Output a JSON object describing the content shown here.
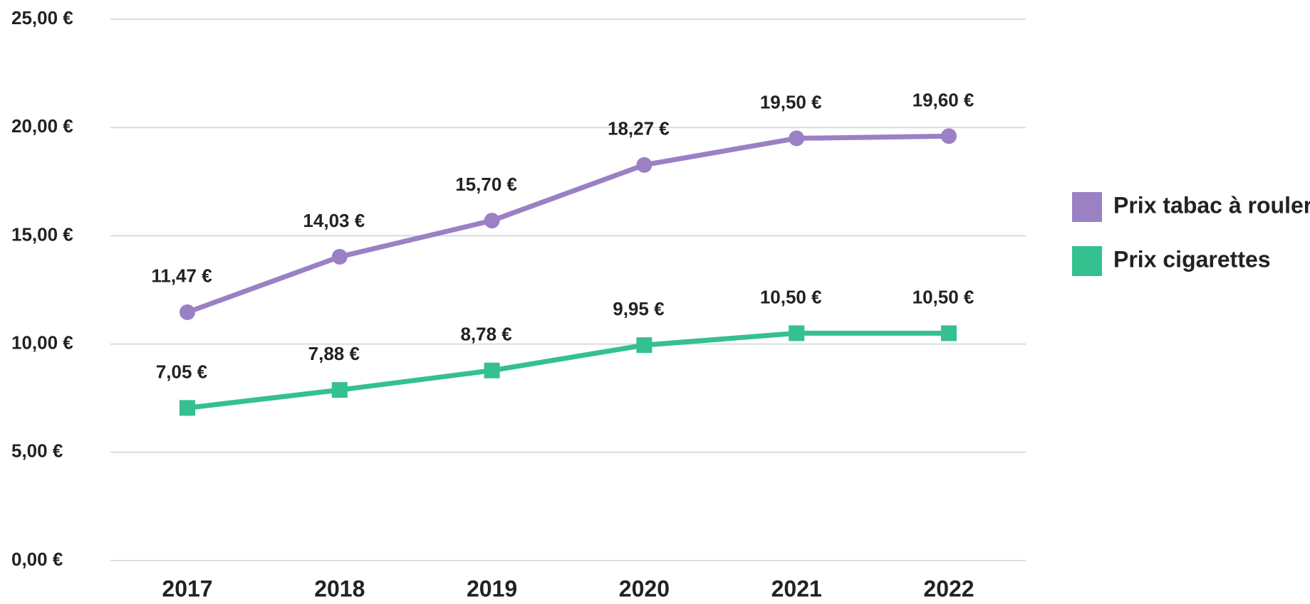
{
  "chart_data": {
    "type": "line",
    "categories": [
      "2017",
      "2018",
      "2019",
      "2020",
      "2021",
      "2022"
    ],
    "series": [
      {
        "name": "Prix tabac à rouler",
        "color": "#9b80c4",
        "marker": "circle",
        "values": [
          11.47,
          14.03,
          15.7,
          18.27,
          19.5,
          19.6
        ],
        "value_labels": [
          "11,47 €",
          "14,03 €",
          "15,70 €",
          "18,27 €",
          "19,50 €",
          "19,60 €"
        ]
      },
      {
        "name": "Prix cigarettes",
        "color": "#34c08f",
        "marker": "square",
        "values": [
          7.05,
          7.88,
          8.78,
          9.95,
          10.5,
          10.5
        ],
        "value_labels": [
          "7,05 €",
          "7,88 €",
          "8,78 €",
          "9,95 €",
          "10,50 €",
          "10,50 €"
        ]
      }
    ],
    "ylim": [
      0,
      25
    ],
    "yticks": [
      {
        "value": 0,
        "label": "0,00 €"
      },
      {
        "value": 5,
        "label": "5,00 €"
      },
      {
        "value": 10,
        "label": "10,00 €"
      },
      {
        "value": 15,
        "label": "15,00 €"
      },
      {
        "value": 20,
        "label": "20,00 €"
      },
      {
        "value": 25,
        "label": "25,00 €"
      }
    ],
    "grid": true,
    "legend": "right"
  }
}
